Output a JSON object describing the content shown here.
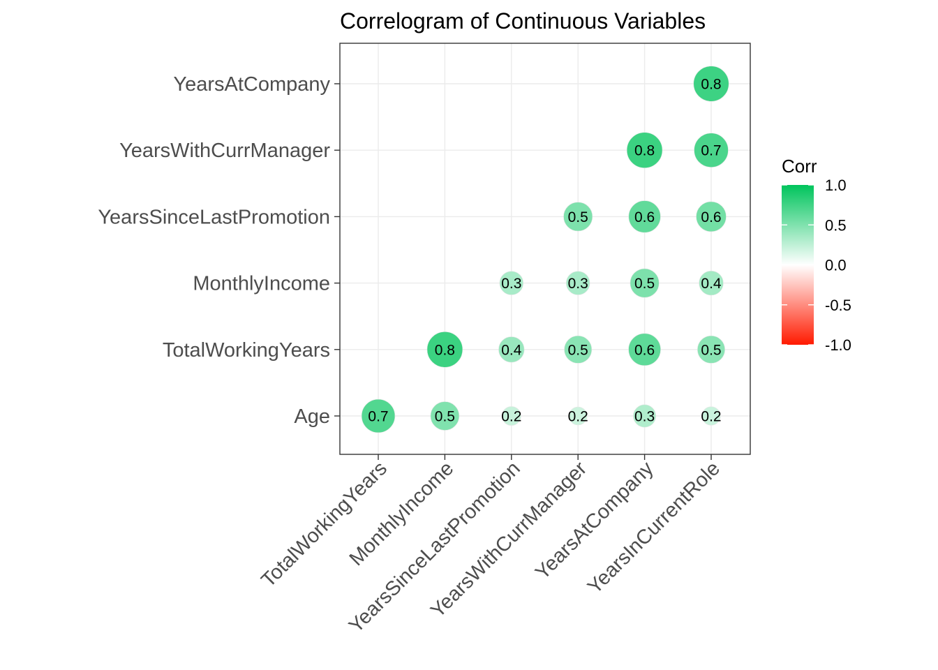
{
  "chart_data": {
    "type": "heatmap",
    "title": "Correlogram of Continuous Variables",
    "x_categories": [
      "TotalWorkingYears",
      "MonthlyIncome",
      "YearsSinceLastPromotion",
      "YearsWithCurrManager",
      "YearsAtCompany",
      "YearsInCurrentRole"
    ],
    "y_categories": [
      "Age",
      "TotalWorkingYears",
      "MonthlyIncome",
      "YearsSinceLastPromotion",
      "YearsWithCurrManager",
      "YearsAtCompany"
    ],
    "cells": [
      {
        "x": "TotalWorkingYears",
        "y": "Age",
        "value": 0.68,
        "label": "0.7"
      },
      {
        "x": "MonthlyIncome",
        "y": "Age",
        "value": 0.5,
        "label": "0.5"
      },
      {
        "x": "YearsSinceLastPromotion",
        "y": "Age",
        "value": 0.22,
        "label": "0.2"
      },
      {
        "x": "YearsWithCurrManager",
        "y": "Age",
        "value": 0.2,
        "label": "0.2"
      },
      {
        "x": "YearsAtCompany",
        "y": "Age",
        "value": 0.31,
        "label": "0.3"
      },
      {
        "x": "YearsInCurrentRole",
        "y": "Age",
        "value": 0.21,
        "label": "0.2"
      },
      {
        "x": "MonthlyIncome",
        "y": "TotalWorkingYears",
        "value": 0.77,
        "label": "0.8"
      },
      {
        "x": "YearsSinceLastPromotion",
        "y": "TotalWorkingYears",
        "value": 0.4,
        "label": "0.4"
      },
      {
        "x": "YearsWithCurrManager",
        "y": "TotalWorkingYears",
        "value": 0.46,
        "label": "0.5"
      },
      {
        "x": "YearsAtCompany",
        "y": "TotalWorkingYears",
        "value": 0.63,
        "label": "0.6"
      },
      {
        "x": "YearsInCurrentRole",
        "y": "TotalWorkingYears",
        "value": 0.46,
        "label": "0.5"
      },
      {
        "x": "YearsSinceLastPromotion",
        "y": "MonthlyIncome",
        "value": 0.34,
        "label": "0.3"
      },
      {
        "x": "YearsWithCurrManager",
        "y": "MonthlyIncome",
        "value": 0.34,
        "label": "0.3"
      },
      {
        "x": "YearsAtCompany",
        "y": "MonthlyIncome",
        "value": 0.51,
        "label": "0.5"
      },
      {
        "x": "YearsInCurrentRole",
        "y": "MonthlyIncome",
        "value": 0.36,
        "label": "0.4"
      },
      {
        "x": "YearsWithCurrManager",
        "y": "YearsSinceLastPromotion",
        "value": 0.51,
        "label": "0.5"
      },
      {
        "x": "YearsAtCompany",
        "y": "YearsSinceLastPromotion",
        "value": 0.62,
        "label": "0.6"
      },
      {
        "x": "YearsInCurrentRole",
        "y": "YearsSinceLastPromotion",
        "value": 0.55,
        "label": "0.6"
      },
      {
        "x": "YearsAtCompany",
        "y": "YearsWithCurrManager",
        "value": 0.77,
        "label": "0.8"
      },
      {
        "x": "YearsInCurrentRole",
        "y": "YearsWithCurrManager",
        "value": 0.71,
        "label": "0.7"
      },
      {
        "x": "YearsInCurrentRole",
        "y": "YearsAtCompany",
        "value": 0.76,
        "label": "0.8"
      }
    ],
    "legend": {
      "title": "Corr",
      "ticks": [
        "1.0",
        "0.5",
        "0.0",
        "-0.5",
        "-1.0"
      ],
      "tick_values": [
        1.0,
        0.5,
        0.0,
        -0.5,
        -1.0
      ],
      "range": [
        -1,
        1
      ],
      "position": "right"
    },
    "colors": {
      "high": "#00c45c",
      "mid": "#ffffff",
      "low": "#ff1a00"
    },
    "grid": true
  }
}
